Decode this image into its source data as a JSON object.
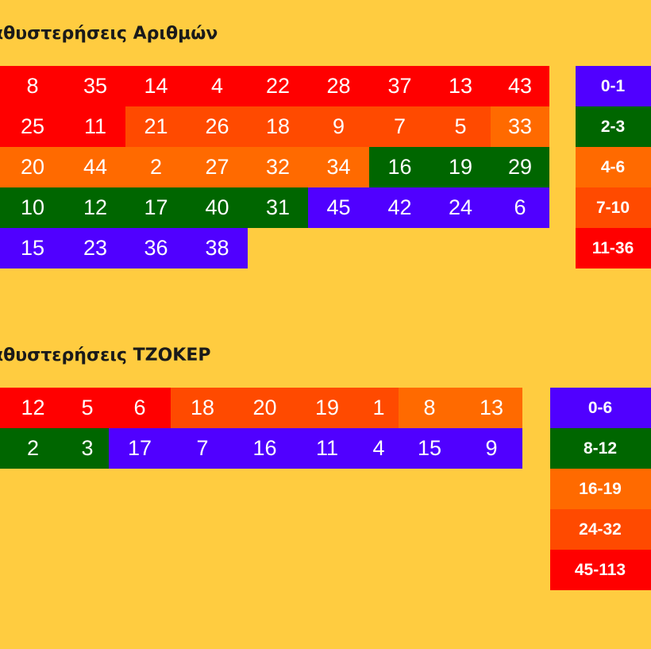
{
  "colors": {
    "background": "#ffcc40",
    "red": "#ff0000",
    "orange_red": "#ff4a00",
    "orange": "#ff6a00",
    "green": "#006600",
    "blue": "#5000ff"
  },
  "numbers_section": {
    "title": "Καθυστερήσεις Αριθμών",
    "rows": [
      [
        {
          "v": "8",
          "c": "red"
        },
        {
          "v": "35",
          "c": "red"
        },
        {
          "v": "14",
          "c": "red"
        },
        {
          "v": "4",
          "c": "red"
        },
        {
          "v": "22",
          "c": "red"
        },
        {
          "v": "28",
          "c": "red"
        },
        {
          "v": "37",
          "c": "red"
        },
        {
          "v": "13",
          "c": "red"
        },
        {
          "v": "43",
          "c": "red"
        }
      ],
      [
        {
          "v": "25",
          "c": "red"
        },
        {
          "v": "11",
          "c": "red"
        },
        {
          "v": "21",
          "c": "orange_red"
        },
        {
          "v": "26",
          "c": "orange_red"
        },
        {
          "v": "18",
          "c": "orange_red"
        },
        {
          "v": "9",
          "c": "orange_red"
        },
        {
          "v": "7",
          "c": "orange_red"
        },
        {
          "v": "5",
          "c": "orange_red"
        },
        {
          "v": "33",
          "c": "orange"
        }
      ],
      [
        {
          "v": "20",
          "c": "orange"
        },
        {
          "v": "44",
          "c": "orange"
        },
        {
          "v": "2",
          "c": "orange"
        },
        {
          "v": "27",
          "c": "orange"
        },
        {
          "v": "32",
          "c": "orange"
        },
        {
          "v": "34",
          "c": "orange"
        },
        {
          "v": "16",
          "c": "green"
        },
        {
          "v": "19",
          "c": "green"
        },
        {
          "v": "29",
          "c": "green"
        }
      ],
      [
        {
          "v": "10",
          "c": "green"
        },
        {
          "v": "12",
          "c": "green"
        },
        {
          "v": "17",
          "c": "green"
        },
        {
          "v": "40",
          "c": "green"
        },
        {
          "v": "31",
          "c": "green"
        },
        {
          "v": "45",
          "c": "blue"
        },
        {
          "v": "42",
          "c": "blue"
        },
        {
          "v": "24",
          "c": "blue"
        },
        {
          "v": "6",
          "c": "blue"
        }
      ],
      [
        {
          "v": "15",
          "c": "blue"
        },
        {
          "v": "23",
          "c": "blue"
        },
        {
          "v": "36",
          "c": "blue"
        },
        {
          "v": "38",
          "c": "blue"
        }
      ]
    ],
    "legend": [
      {
        "label": "0-1",
        "c": "blue"
      },
      {
        "label": "2-3",
        "c": "green"
      },
      {
        "label": "4-6",
        "c": "orange"
      },
      {
        "label": "7-10",
        "c": "orange_red"
      },
      {
        "label": "11-36",
        "c": "red"
      }
    ]
  },
  "joker_section": {
    "title": "Καθυστερήσεις ΤΖΟΚΕΡ",
    "rows": [
      [
        {
          "v": "12",
          "c": "red"
        },
        {
          "v": "5",
          "c": "red"
        },
        {
          "v": "6",
          "c": "red"
        },
        {
          "v": "18",
          "c": "orange_red"
        },
        {
          "v": "20",
          "c": "orange_red"
        },
        {
          "v": "19",
          "c": "orange_red"
        },
        {
          "v": "1",
          "c": "orange_red"
        },
        {
          "v": "8",
          "c": "orange"
        },
        {
          "v": "13",
          "c": "orange"
        }
      ],
      [
        {
          "v": "2",
          "c": "green"
        },
        {
          "v": "3",
          "c": "green"
        },
        {
          "v": "17",
          "c": "blue"
        },
        {
          "v": "7",
          "c": "blue"
        },
        {
          "v": "16",
          "c": "blue"
        },
        {
          "v": "11",
          "c": "blue"
        },
        {
          "v": "4",
          "c": "blue"
        },
        {
          "v": "15",
          "c": "blue"
        },
        {
          "v": "9",
          "c": "blue"
        }
      ]
    ],
    "legend": [
      {
        "label": "0-6",
        "c": "blue"
      },
      {
        "label": "8-12",
        "c": "green"
      },
      {
        "label": "16-19",
        "c": "orange"
      },
      {
        "label": "24-32",
        "c": "orange_red"
      },
      {
        "label": "45-113",
        "c": "red"
      }
    ]
  }
}
